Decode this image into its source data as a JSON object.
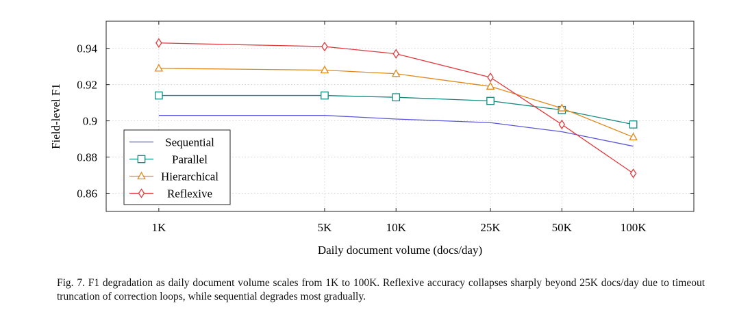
{
  "chart_data": {
    "type": "line",
    "xlabel": "Daily document volume (docs/day)",
    "ylabel": "Field-level F1",
    "x_scale": "log",
    "xlim": [
      600,
      180000
    ],
    "ylim": [
      0.85,
      0.955
    ],
    "x": [
      1000,
      5000,
      10000,
      25000,
      50000,
      100000
    ],
    "x_tick_labels": [
      "1K",
      "5K",
      "10K",
      "25K",
      "50K",
      "100K"
    ],
    "y_ticks": [
      0.86,
      0.88,
      0.9,
      0.92,
      0.94
    ],
    "y_tick_labels": [
      "0.86",
      "0.88",
      "0.9",
      "0.92",
      "0.94"
    ],
    "grid": true,
    "legend_position": "bottom-left",
    "series": [
      {
        "name": "Sequential",
        "marker": "none",
        "color": "#5b57d9",
        "values": [
          0.903,
          0.903,
          0.901,
          0.899,
          0.894,
          0.886
        ]
      },
      {
        "name": "Parallel",
        "marker": "square",
        "color": "#138a80",
        "values": [
          0.914,
          0.914,
          0.913,
          0.911,
          0.906,
          0.898
        ]
      },
      {
        "name": "Hierarchical",
        "marker": "triangle",
        "color": "#e0891a",
        "values": [
          0.929,
          0.928,
          0.926,
          0.919,
          0.907,
          0.891
        ]
      },
      {
        "name": "Reflexive",
        "marker": "diamond",
        "color": "#e03a3e",
        "values": [
          0.943,
          0.941,
          0.937,
          0.924,
          0.898,
          0.871
        ]
      }
    ]
  },
  "caption": "Fig. 7.  F1 degradation as daily document volume scales from 1K to 100K. Reflexive accuracy collapses sharply beyond 25K docs/day due to timeout truncation of correction loops, while sequential degrades most gradually."
}
